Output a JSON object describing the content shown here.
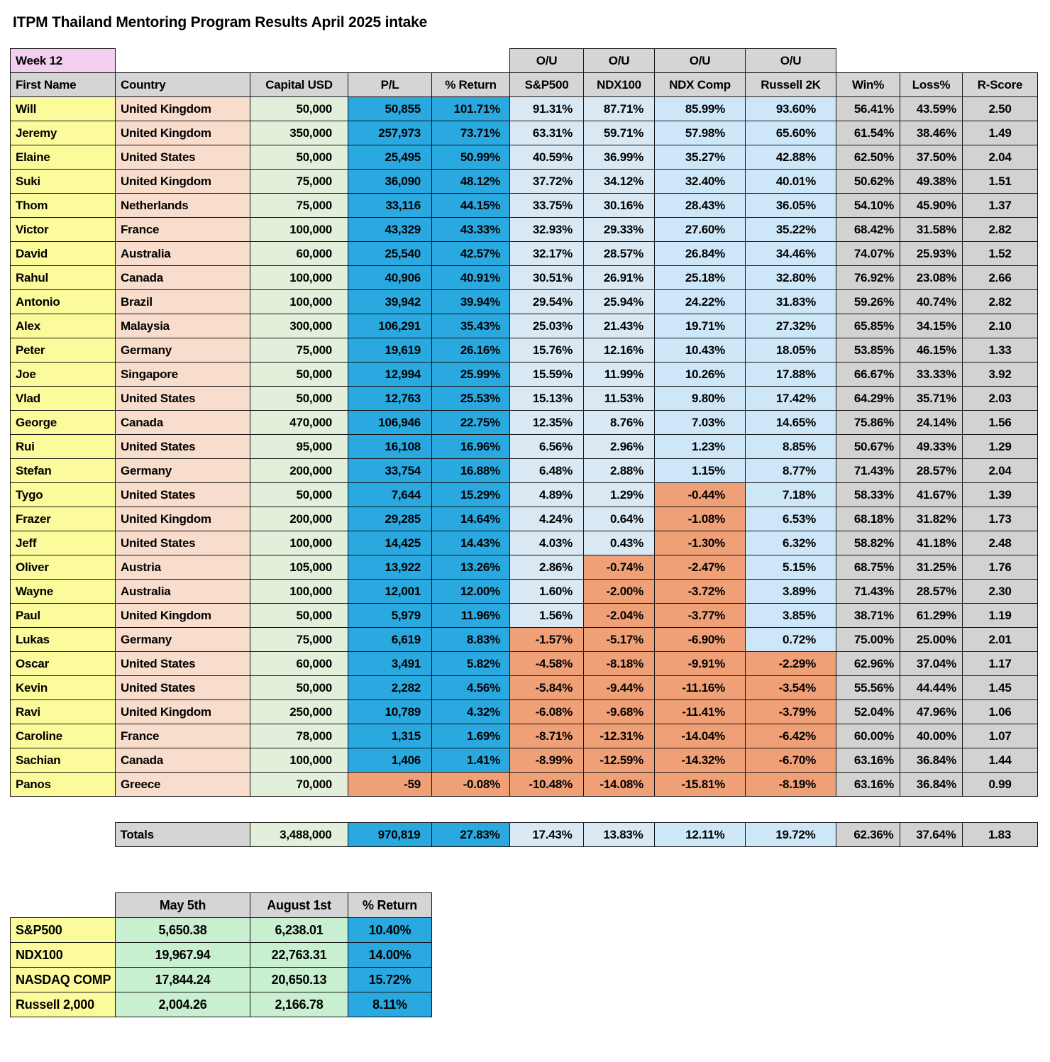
{
  "title": "ITPM Thailand Mentoring Program Results April 2025 intake",
  "week_label": "Week 12",
  "colors": {
    "accent_blue": "#29A9E0",
    "light_blue_a": "#D9E8F3",
    "light_blue_b": "#CDE7F8",
    "orange": "#EFA077",
    "yellow": "#FBFB9B",
    "pink": "#F8DCCC",
    "green": "#E2EFDA",
    "mint": "#C8EFCF",
    "gray_cell": "#D2D2D2",
    "header_gray": "#D5D5D5",
    "week_pink": "#F2CFEE"
  },
  "table": {
    "ou_label": "O/U",
    "columns": [
      "First Name",
      "Country",
      "Capital USD",
      "P/L",
      "% Return",
      "S&P500",
      "NDX100",
      "NDX Comp",
      "Russell 2K",
      "Win%",
      "Loss%",
      "R-Score"
    ],
    "rows": [
      [
        "Will",
        "United Kingdom",
        "50,000",
        "50,855",
        "101.71%",
        "91.31%",
        "87.71%",
        "85.99%",
        "93.60%",
        "56.41%",
        "43.59%",
        "2.50"
      ],
      [
        "Jeremy",
        "United Kingdom",
        "350,000",
        "257,973",
        "73.71%",
        "63.31%",
        "59.71%",
        "57.98%",
        "65.60%",
        "61.54%",
        "38.46%",
        "1.49"
      ],
      [
        "Elaine",
        "United States",
        "50,000",
        "25,495",
        "50.99%",
        "40.59%",
        "36.99%",
        "35.27%",
        "42.88%",
        "62.50%",
        "37.50%",
        "2.04"
      ],
      [
        "Suki",
        "United Kingdom",
        "75,000",
        "36,090",
        "48.12%",
        "37.72%",
        "34.12%",
        "32.40%",
        "40.01%",
        "50.62%",
        "49.38%",
        "1.51"
      ],
      [
        "Thom",
        "Netherlands",
        "75,000",
        "33,116",
        "44.15%",
        "33.75%",
        "30.16%",
        "28.43%",
        "36.05%",
        "54.10%",
        "45.90%",
        "1.37"
      ],
      [
        "Victor",
        "France",
        "100,000",
        "43,329",
        "43.33%",
        "32.93%",
        "29.33%",
        "27.60%",
        "35.22%",
        "68.42%",
        "31.58%",
        "2.82"
      ],
      [
        "David",
        "Australia",
        "60,000",
        "25,540",
        "42.57%",
        "32.17%",
        "28.57%",
        "26.84%",
        "34.46%",
        "74.07%",
        "25.93%",
        "1.52"
      ],
      [
        "Rahul",
        "Canada",
        "100,000",
        "40,906",
        "40.91%",
        "30.51%",
        "26.91%",
        "25.18%",
        "32.80%",
        "76.92%",
        "23.08%",
        "2.66"
      ],
      [
        "Antonio",
        "Brazil",
        "100,000",
        "39,942",
        "39.94%",
        "29.54%",
        "25.94%",
        "24.22%",
        "31.83%",
        "59.26%",
        "40.74%",
        "2.82"
      ],
      [
        "Alex",
        "Malaysia",
        "300,000",
        "106,291",
        "35.43%",
        "25.03%",
        "21.43%",
        "19.71%",
        "27.32%",
        "65.85%",
        "34.15%",
        "2.10"
      ],
      [
        "Peter",
        "Germany",
        "75,000",
        "19,619",
        "26.16%",
        "15.76%",
        "12.16%",
        "10.43%",
        "18.05%",
        "53.85%",
        "46.15%",
        "1.33"
      ],
      [
        "Joe",
        "Singapore",
        "50,000",
        "12,994",
        "25.99%",
        "15.59%",
        "11.99%",
        "10.26%",
        "17.88%",
        "66.67%",
        "33.33%",
        "3.92"
      ],
      [
        "Vlad",
        "United States",
        "50,000",
        "12,763",
        "25.53%",
        "15.13%",
        "11.53%",
        "9.80%",
        "17.42%",
        "64.29%",
        "35.71%",
        "2.03"
      ],
      [
        "George",
        "Canada",
        "470,000",
        "106,946",
        "22.75%",
        "12.35%",
        "8.76%",
        "7.03%",
        "14.65%",
        "75.86%",
        "24.14%",
        "1.56"
      ],
      [
        "Rui",
        "United States",
        "95,000",
        "16,108",
        "16.96%",
        "6.56%",
        "2.96%",
        "1.23%",
        "8.85%",
        "50.67%",
        "49.33%",
        "1.29"
      ],
      [
        "Stefan",
        "Germany",
        "200,000",
        "33,754",
        "16.88%",
        "6.48%",
        "2.88%",
        "1.15%",
        "8.77%",
        "71.43%",
        "28.57%",
        "2.04"
      ],
      [
        "Tygo",
        "United States",
        "50,000",
        "7,644",
        "15.29%",
        "4.89%",
        "1.29%",
        "-0.44%",
        "7.18%",
        "58.33%",
        "41.67%",
        "1.39"
      ],
      [
        "Frazer",
        "United Kingdom",
        "200,000",
        "29,285",
        "14.64%",
        "4.24%",
        "0.64%",
        "-1.08%",
        "6.53%",
        "68.18%",
        "31.82%",
        "1.73"
      ],
      [
        "Jeff",
        "United States",
        "100,000",
        "14,425",
        "14.43%",
        "4.03%",
        "0.43%",
        "-1.30%",
        "6.32%",
        "58.82%",
        "41.18%",
        "2.48"
      ],
      [
        "Oliver",
        "Austria",
        "105,000",
        "13,922",
        "13.26%",
        "2.86%",
        "-0.74%",
        "-2.47%",
        "5.15%",
        "68.75%",
        "31.25%",
        "1.76"
      ],
      [
        "Wayne",
        "Australia",
        "100,000",
        "12,001",
        "12.00%",
        "1.60%",
        "-2.00%",
        "-3.72%",
        "3.89%",
        "71.43%",
        "28.57%",
        "2.30"
      ],
      [
        "Paul",
        "United Kingdom",
        "50,000",
        "5,979",
        "11.96%",
        "1.56%",
        "-2.04%",
        "-3.77%",
        "3.85%",
        "38.71%",
        "61.29%",
        "1.19"
      ],
      [
        "Lukas",
        "Germany",
        "75,000",
        "6,619",
        "8.83%",
        "-1.57%",
        "-5.17%",
        "-6.90%",
        "0.72%",
        "75.00%",
        "25.00%",
        "2.01"
      ],
      [
        "Oscar",
        "United States",
        "60,000",
        "3,491",
        "5.82%",
        "-4.58%",
        "-8.18%",
        "-9.91%",
        "-2.29%",
        "62.96%",
        "37.04%",
        "1.17"
      ],
      [
        "Kevin",
        "United States",
        "50,000",
        "2,282",
        "4.56%",
        "-5.84%",
        "-9.44%",
        "-11.16%",
        "-3.54%",
        "55.56%",
        "44.44%",
        "1.45"
      ],
      [
        "Ravi",
        "United Kingdom",
        "250,000",
        "10,789",
        "4.32%",
        "-6.08%",
        "-9.68%",
        "-11.41%",
        "-3.79%",
        "52.04%",
        "47.96%",
        "1.06"
      ],
      [
        "Caroline",
        "France",
        "78,000",
        "1,315",
        "1.69%",
        "-8.71%",
        "-12.31%",
        "-14.04%",
        "-6.42%",
        "60.00%",
        "40.00%",
        "1.07"
      ],
      [
        "Sachian",
        "Canada",
        "100,000",
        "1,406",
        "1.41%",
        "-8.99%",
        "-12.59%",
        "-14.32%",
        "-6.70%",
        "63.16%",
        "36.84%",
        "1.44"
      ],
      [
        "Panos",
        "Greece",
        "70,000",
        "-59",
        "-0.08%",
        "-10.48%",
        "-14.08%",
        "-15.81%",
        "-8.19%",
        "63.16%",
        "36.84%",
        "0.99"
      ]
    ],
    "totals": [
      "",
      "Totals",
      "3,488,000",
      "970,819",
      "27.83%",
      "17.43%",
      "13.83%",
      "12.11%",
      "19.72%",
      "62.36%",
      "37.64%",
      "1.83"
    ]
  },
  "index_table": {
    "columns": [
      "May 5th",
      "August 1st",
      "% Return"
    ],
    "rows": [
      [
        "S&P500",
        "5,650.38",
        "6,238.01",
        "10.40%"
      ],
      [
        "NDX100",
        "19,967.94",
        "22,763.31",
        "14.00%"
      ],
      [
        "NASDAQ COMP",
        "17,844.24",
        "20,650.13",
        "15.72%"
      ],
      [
        "Russell 2,000",
        "2,004.26",
        "2,166.78",
        "8.11%"
      ]
    ]
  }
}
